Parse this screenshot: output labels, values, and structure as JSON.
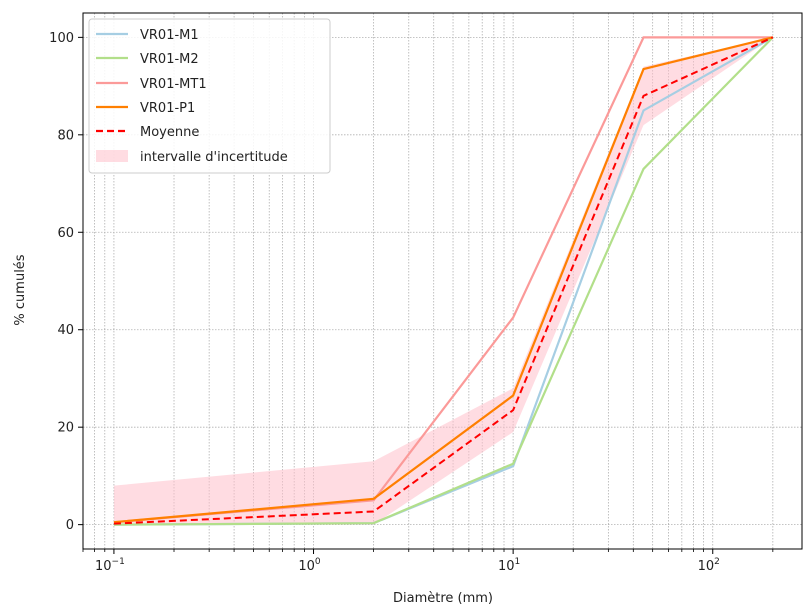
{
  "chart_data": {
    "type": "line",
    "xscale": "log",
    "xlabel": "Diamètre (mm)",
    "ylabel": "% cumulés",
    "xlim": [
      0.07,
      280
    ],
    "ylim": [
      -5,
      105
    ],
    "x": [
      0.1,
      2,
      10,
      45,
      200
    ],
    "x_ticks": [
      {
        "value": 0.1,
        "base": "10",
        "exp": "−1"
      },
      {
        "value": 1,
        "base": "10",
        "exp": "0"
      },
      {
        "value": 10,
        "base": "10",
        "exp": "1"
      },
      {
        "value": 100,
        "base": "10",
        "exp": "2"
      }
    ],
    "y_ticks": [
      0,
      20,
      40,
      60,
      80,
      100
    ],
    "grid": "major and minor, dotted",
    "legend_position": "top-left",
    "series": [
      {
        "name": "VR01-M1",
        "color": "#a6cee3",
        "style": "solid",
        "values": [
          0,
          0.3,
          12,
          85,
          100
        ]
      },
      {
        "name": "VR01-M2",
        "color": "#b2df8a",
        "style": "solid",
        "values": [
          0,
          0.3,
          12.5,
          73,
          100
        ]
      },
      {
        "name": "VR01-MT1",
        "color": "#fb9a99",
        "style": "solid",
        "values": [
          0.5,
          5,
          42.5,
          100,
          100
        ]
      },
      {
        "name": "VR01-P1",
        "color": "#ff7f00",
        "style": "solid",
        "values": [
          0.5,
          5.3,
          26.5,
          93.5,
          100
        ]
      },
      {
        "name": "Moyenne",
        "color": "#ff0000",
        "style": "dashed",
        "values": [
          0.2,
          2.7,
          23.5,
          88,
          100
        ]
      }
    ],
    "band": {
      "name": "intervalle d'incertitude",
      "color": "#ffc0cb",
      "lower": [
        0,
        0,
        19,
        82,
        100
      ],
      "upper": [
        8,
        13,
        28,
        94,
        100
      ]
    }
  }
}
